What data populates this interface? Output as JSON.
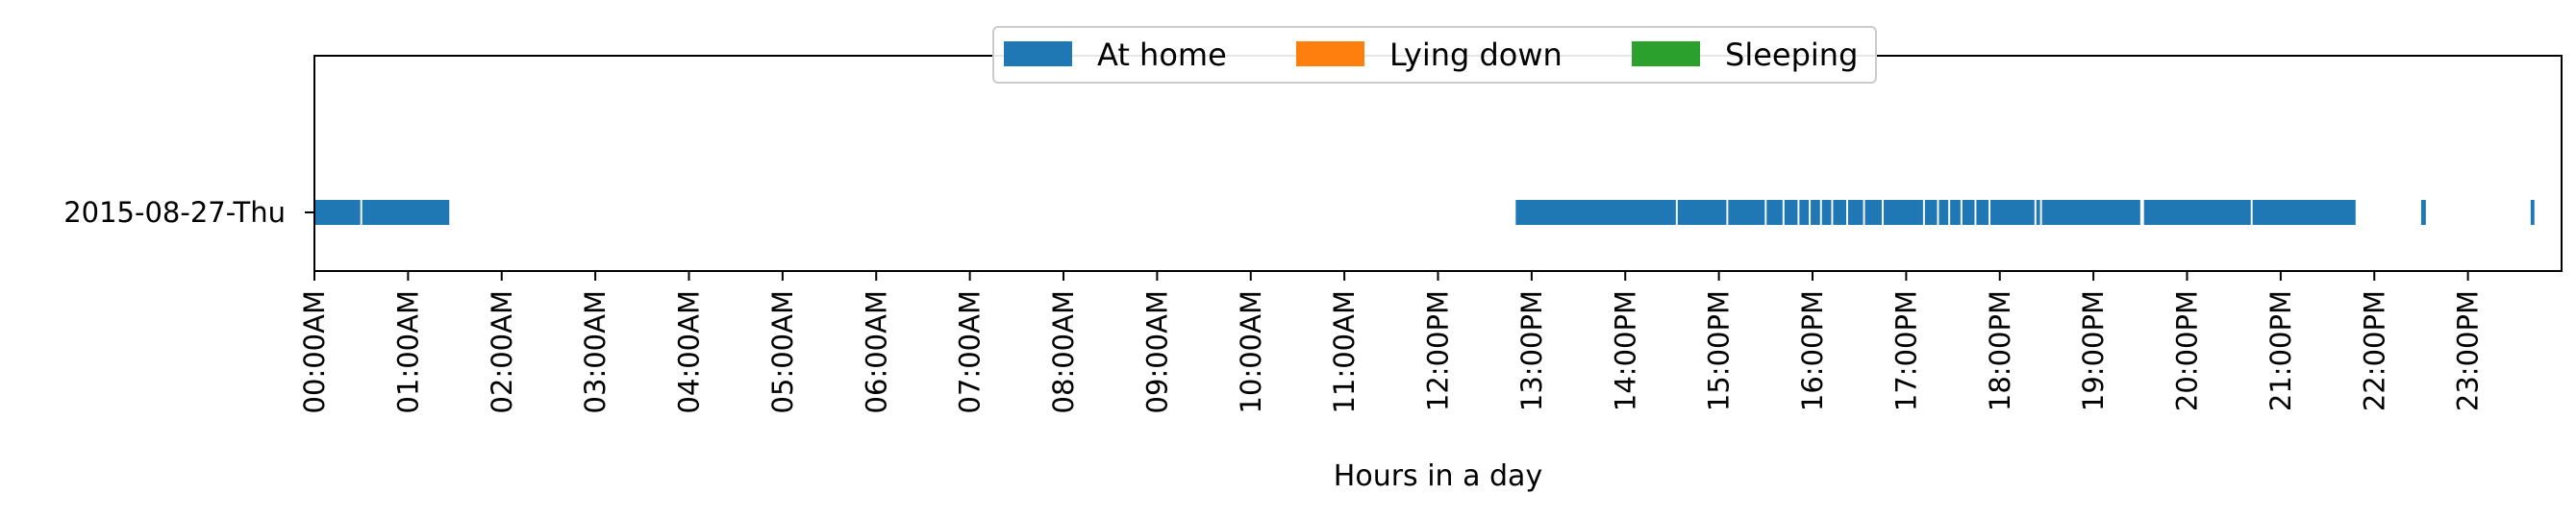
{
  "chart_data": {
    "type": "timeline",
    "title": "",
    "xlabel": "Hours in a day",
    "ylabel": "",
    "xlim": [
      0,
      24
    ],
    "grid": false,
    "legend_placement": "top-center",
    "legend": [
      {
        "name": "At home",
        "color": "#1f77b4"
      },
      {
        "name": "Lying down",
        "color": "#ff7f0e"
      },
      {
        "name": "Sleeping",
        "color": "#2ca02c"
      }
    ],
    "x_ticks": [
      {
        "value": 0,
        "label": "00:00AM"
      },
      {
        "value": 1,
        "label": "01:00AM"
      },
      {
        "value": 2,
        "label": "02:00AM"
      },
      {
        "value": 3,
        "label": "03:00AM"
      },
      {
        "value": 4,
        "label": "04:00AM"
      },
      {
        "value": 5,
        "label": "05:00AM"
      },
      {
        "value": 6,
        "label": "06:00AM"
      },
      {
        "value": 7,
        "label": "07:00AM"
      },
      {
        "value": 8,
        "label": "08:00AM"
      },
      {
        "value": 9,
        "label": "09:00AM"
      },
      {
        "value": 10,
        "label": "10:00AM"
      },
      {
        "value": 11,
        "label": "11:00AM"
      },
      {
        "value": 12,
        "label": "12:00PM"
      },
      {
        "value": 13,
        "label": "13:00PM"
      },
      {
        "value": 14,
        "label": "14:00PM"
      },
      {
        "value": 15,
        "label": "15:00PM"
      },
      {
        "value": 16,
        "label": "16:00PM"
      },
      {
        "value": 17,
        "label": "17:00PM"
      },
      {
        "value": 18,
        "label": "18:00PM"
      },
      {
        "value": 19,
        "label": "19:00PM"
      },
      {
        "value": 20,
        "label": "20:00PM"
      },
      {
        "value": 21,
        "label": "21:00PM"
      },
      {
        "value": 22,
        "label": "22:00PM"
      },
      {
        "value": 23,
        "label": "23:00PM"
      }
    ],
    "rows": [
      {
        "label": "2015-08-27-Thu",
        "series": [
          {
            "name": "At home",
            "intervals": [
              [
                0.0,
                0.49
              ],
              [
                0.51,
                1.44
              ],
              [
                12.83,
                14.54
              ],
              [
                14.56,
                15.08
              ],
              [
                15.1,
                15.49
              ],
              [
                15.51,
                15.68
              ],
              [
                15.7,
                15.84
              ],
              [
                15.86,
                15.96
              ],
              [
                15.98,
                16.08
              ],
              [
                16.1,
                16.2
              ],
              [
                16.22,
                16.36
              ],
              [
                16.38,
                16.54
              ],
              [
                16.56,
                16.74
              ],
              [
                16.76,
                17.18
              ],
              [
                17.2,
                17.33
              ],
              [
                17.35,
                17.45
              ],
              [
                17.47,
                17.58
              ],
              [
                17.6,
                17.73
              ],
              [
                17.75,
                17.88
              ],
              [
                17.9,
                18.37
              ],
              [
                18.39,
                18.43
              ],
              [
                18.45,
                19.5
              ],
              [
                19.54,
                20.68
              ],
              [
                20.7,
                21.8
              ],
              [
                22.5,
                22.55
              ],
              [
                23.67,
                23.71
              ]
            ]
          },
          {
            "name": "Lying down",
            "intervals": []
          },
          {
            "name": "Sleeping",
            "intervals": []
          }
        ]
      }
    ]
  }
}
